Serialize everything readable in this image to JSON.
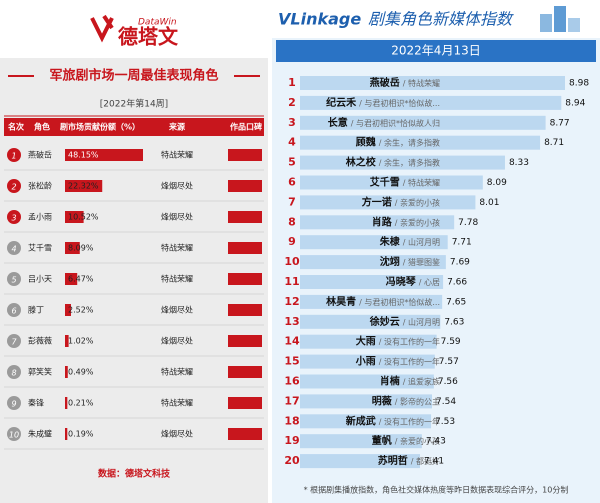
{
  "left": {
    "logo_en": "DataWin",
    "logo_cn": "德塔文",
    "title": "军旅剧市场一周最佳表现角色",
    "week": "[2022年第14周]",
    "columns": [
      "名次",
      "角色",
      "剧市场贡献份额（%）",
      "来源",
      "作品口碑"
    ],
    "rows": [
      {
        "rank": "1",
        "name": "燕破岳",
        "share": 48.15,
        "share_label": "48.15%",
        "source": "特战荣耀"
      },
      {
        "rank": "2",
        "name": "张松龄",
        "share": 22.32,
        "share_label": "22.32%",
        "source": "烽烟尽处"
      },
      {
        "rank": "3",
        "name": "孟小雨",
        "share": 10.52,
        "share_label": "10.52%",
        "source": "烽烟尽处"
      },
      {
        "rank": "4",
        "name": "艾千雪",
        "share": 8.09,
        "share_label": "8.09%",
        "source": "特战荣耀"
      },
      {
        "rank": "5",
        "name": "吕小天",
        "share": 6.47,
        "share_label": "6.47%",
        "source": "特战荣耀"
      },
      {
        "rank": "6",
        "name": "滕丁",
        "share": 2.52,
        "share_label": "2.52%",
        "source": "烽烟尽处"
      },
      {
        "rank": "7",
        "name": "彭薇薇",
        "share": 1.02,
        "share_label": "1.02%",
        "source": "烽烟尽处"
      },
      {
        "rank": "8",
        "name": "郭笑笑",
        "share": 0.49,
        "share_label": "0.49%",
        "source": "特战荣耀"
      },
      {
        "rank": "9",
        "name": "秦锋",
        "share": 0.21,
        "share_label": "0.21%",
        "source": "特战荣耀"
      },
      {
        "rank": "10",
        "name": "朱成璧",
        "share": 0.19,
        "share_label": "0.19%",
        "source": "烽烟尽处"
      }
    ],
    "footer": "数据：德塔文科技"
  },
  "right": {
    "logo": "VLinkage",
    "title": "剧集角色新媒体指数",
    "date": "2022年4月13日",
    "rows": [
      {
        "rank": "1",
        "name": "燕破岳",
        "source": "/ 特战荣耀",
        "index": 8.98
      },
      {
        "rank": "2",
        "name": "纪云禾",
        "source": "/ 与君初相识*恰似故...",
        "index": 8.94
      },
      {
        "rank": "3",
        "name": "长意",
        "source": "/ 与君初相识*恰似故人归",
        "index": 8.77
      },
      {
        "rank": "4",
        "name": "顾魏",
        "source": "/ 余生，请多指教",
        "index": 8.71
      },
      {
        "rank": "5",
        "name": "林之校",
        "source": "/ 余生，请多指教",
        "index": 8.33
      },
      {
        "rank": "6",
        "name": "艾千雪",
        "source": "/ 特战荣耀",
        "index": 8.09
      },
      {
        "rank": "7",
        "name": "方一诺",
        "source": "/ 亲爱的小孩",
        "index": 8.01
      },
      {
        "rank": "8",
        "name": "肖路",
        "source": "/ 亲爱的小孩",
        "index": 7.78
      },
      {
        "rank": "9",
        "name": "朱棣",
        "source": "/ 山河月明",
        "index": 7.71
      },
      {
        "rank": "10",
        "name": "沈翊",
        "source": "/ 猎罪图鉴",
        "index": 7.69
      },
      {
        "rank": "11",
        "name": "冯晓琴",
        "source": "/ 心居",
        "index": 7.66
      },
      {
        "rank": "12",
        "name": "林昊青",
        "source": "/ 与君初相识*恰似故...",
        "index": 7.65
      },
      {
        "rank": "13",
        "name": "徐妙云",
        "source": "/ 山河月明",
        "index": 7.63
      },
      {
        "rank": "14",
        "name": "大雨",
        "source": "/ 没有工作的一年",
        "index": 7.59
      },
      {
        "rank": "15",
        "name": "小雨",
        "source": "/ 没有工作的一年",
        "index": 7.57
      },
      {
        "rank": "16",
        "name": "肖楠",
        "source": "/ 追爱家族",
        "index": 7.56
      },
      {
        "rank": "17",
        "name": "明薇",
        "source": "/ 影帝的公主",
        "index": 7.54
      },
      {
        "rank": "18",
        "name": "新成武",
        "source": "/ 没有工作的一年",
        "index": 7.53
      },
      {
        "rank": "19",
        "name": "董帆",
        "source": "/ 亲爱的小孩",
        "index": 7.43
      },
      {
        "rank": "20",
        "name": "苏明哲",
        "source": "/ 都挺好",
        "index": 7.41
      }
    ],
    "note": "* 根据剧集播放指数，角色社交媒体热度等昨日数据表现综合评分，10分制"
  }
}
